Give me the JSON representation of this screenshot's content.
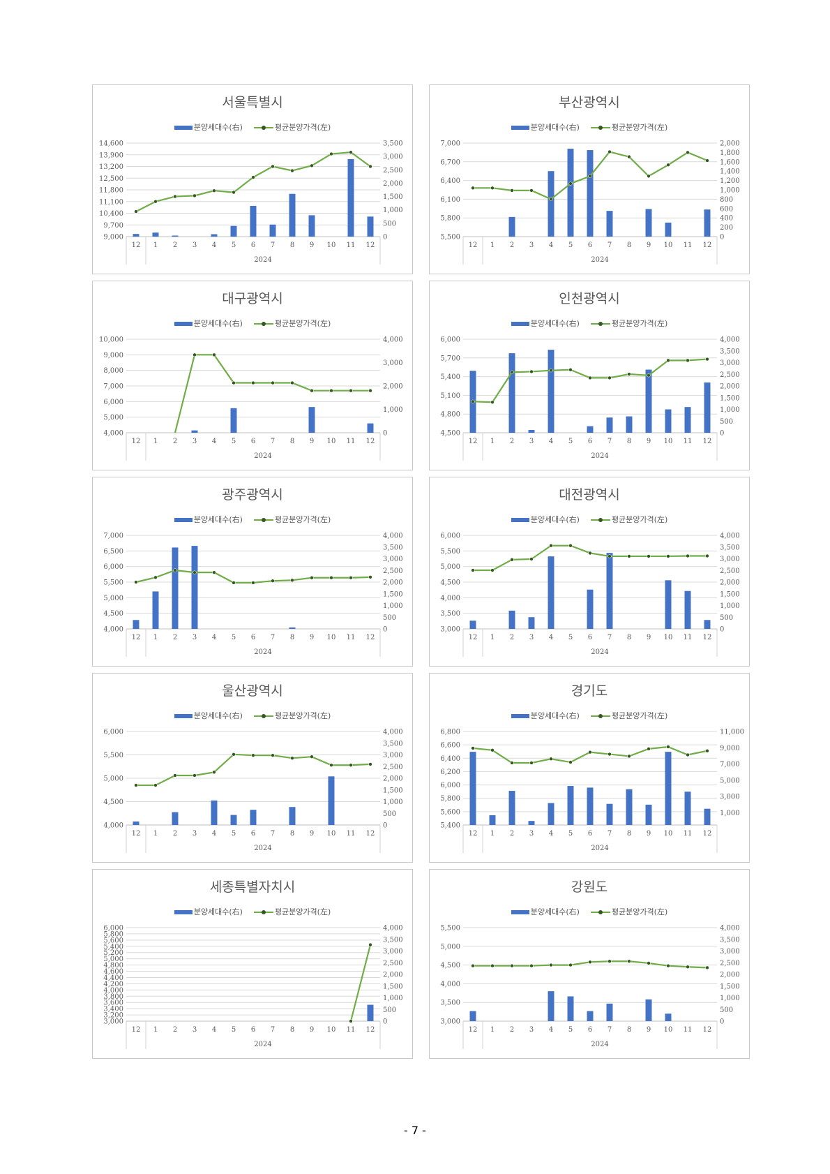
{
  "page_number": "- 7 -",
  "legend": {
    "bar_label": "분양세대수(右)",
    "line_label": "평균분양가격(左)"
  },
  "colors": {
    "bar": "#4472c4",
    "line": "#70ad47",
    "marker": "#375623",
    "grid": "#d9d9d9"
  },
  "x_categories": [
    "12",
    "1",
    "2",
    "3",
    "4",
    "5",
    "6",
    "7",
    "8",
    "9",
    "10",
    "11",
    "12"
  ],
  "x_group_label": "2024",
  "chart_data": [
    {
      "type": "bar+line",
      "title": "서울특별시",
      "left_ticks": [
        "9,000",
        "9,700",
        "10,400",
        "11,100",
        "11,800",
        "12,500",
        "13,200",
        "13,900",
        "14,600"
      ],
      "left_range": [
        9000,
        14600
      ],
      "right_ticks": [
        "0",
        "500",
        "1,000",
        "1,500",
        "2,000",
        "2,500",
        "3,000",
        "3,500"
      ],
      "right_range": [
        0,
        3500
      ],
      "bars": [
        100,
        150,
        40,
        0,
        90,
        400,
        1150,
        450,
        1600,
        800,
        0,
        2900,
        750
      ],
      "line": [
        10500,
        11100,
        11400,
        11450,
        11750,
        11650,
        12550,
        13200,
        12950,
        13250,
        13950,
        14050,
        13200
      ]
    },
    {
      "type": "bar+line",
      "title": "부산광역시",
      "left_ticks": [
        "5,500",
        "5,800",
        "6,100",
        "6,400",
        "6,700",
        "7,000"
      ],
      "left_range": [
        5500,
        7000
      ],
      "right_ticks": [
        "0",
        "200",
        "400",
        "600",
        "800",
        "1,000",
        "1,200",
        "1,400",
        "1,600",
        "1,800",
        "2,000"
      ],
      "right_range": [
        0,
        2000
      ],
      "bars": [
        0,
        0,
        420,
        0,
        1400,
        1880,
        1850,
        550,
        0,
        590,
        300,
        0,
        580
      ],
      "line": [
        6280,
        6280,
        6240,
        6240,
        6100,
        6350,
        6470,
        6860,
        6780,
        6470,
        6650,
        6850,
        6720
      ]
    },
    {
      "type": "bar+line",
      "title": "대구광역시",
      "left_ticks": [
        "4,000",
        "5,000",
        "6,000",
        "7,000",
        "8,000",
        "9,000",
        "10,000"
      ],
      "left_range": [
        4000,
        10000
      ],
      "right_ticks": [
        "0",
        "1,000",
        "2,000",
        "3,000",
        "4,000"
      ],
      "right_range": [
        0,
        4000
      ],
      "bars": [
        0,
        0,
        0,
        100,
        0,
        1050,
        0,
        0,
        0,
        1100,
        0,
        0,
        400
      ],
      "line": [
        null,
        null,
        3900,
        9000,
        9000,
        7200,
        7200,
        7200,
        7200,
        6700,
        6700,
        6700,
        6700
      ]
    },
    {
      "type": "bar+line",
      "title": "인천광역시",
      "left_ticks": [
        "4,500",
        "4,800",
        "5,100",
        "5,400",
        "5,700",
        "6,000"
      ],
      "left_range": [
        4500,
        6000
      ],
      "right_ticks": [
        "0",
        "500",
        "1,000",
        "1,500",
        "2,000",
        "2,500",
        "3,000",
        "3,500",
        "4,000"
      ],
      "right_range": [
        0,
        4000
      ],
      "bars": [
        2650,
        0,
        3400,
        120,
        3550,
        0,
        280,
        650,
        700,
        2700,
        1000,
        1100,
        2150
      ],
      "line": [
        5000,
        4990,
        5470,
        5480,
        5500,
        5510,
        5380,
        5380,
        5440,
        5420,
        5660,
        5660,
        5680
      ]
    },
    {
      "type": "bar+line",
      "title": "광주광역시",
      "left_ticks": [
        "4,000",
        "4,500",
        "5,000",
        "5,500",
        "6,000",
        "6,500",
        "7,000"
      ],
      "left_range": [
        4000,
        7000
      ],
      "right_ticks": [
        "0",
        "500",
        "1,000",
        "1,500",
        "2,000",
        "2,500",
        "3,000",
        "3,500",
        "4,000"
      ],
      "right_range": [
        0,
        4000
      ],
      "bars": [
        380,
        1600,
        3480,
        3550,
        0,
        0,
        0,
        0,
        60,
        0,
        0,
        0,
        0
      ],
      "line": [
        5500,
        5650,
        5880,
        5810,
        5810,
        5480,
        5480,
        5540,
        5560,
        5640,
        5640,
        5640,
        5660
      ]
    },
    {
      "type": "bar+line",
      "title": "대전광역시",
      "left_ticks": [
        "3,000",
        "3,500",
        "4,000",
        "4,500",
        "5,000",
        "5,500",
        "6,000"
      ],
      "left_range": [
        3000,
        6000
      ],
      "right_ticks": [
        "0",
        "500",
        "1,000",
        "1,500",
        "2,000",
        "2,500",
        "3,000",
        "3,500",
        "4,000"
      ],
      "right_range": [
        0,
        4000
      ],
      "bars": [
        350,
        0,
        780,
        500,
        3100,
        0,
        1680,
        3250,
        0,
        0,
        2080,
        1620,
        380
      ],
      "line": [
        4880,
        4880,
        5220,
        5240,
        5670,
        5670,
        5430,
        5330,
        5330,
        5330,
        5330,
        5340,
        5340
      ]
    },
    {
      "type": "bar+line",
      "title": "울산광역시",
      "left_ticks": [
        "4,000",
        "4,500",
        "5,000",
        "5,500",
        "6,000"
      ],
      "left_range": [
        4000,
        6000
      ],
      "right_ticks": [
        "0",
        "500",
        "1,000",
        "1,500",
        "2,000",
        "2,500",
        "3,000",
        "3,500",
        "4,000"
      ],
      "right_range": [
        0,
        4000
      ],
      "bars": [
        150,
        0,
        550,
        0,
        1050,
        430,
        650,
        0,
        770,
        0,
        2080,
        0,
        0
      ],
      "line": [
        4850,
        4850,
        5060,
        5060,
        5130,
        5510,
        5490,
        5490,
        5430,
        5460,
        5280,
        5280,
        5300
      ]
    },
    {
      "type": "bar+line",
      "title": "경기도",
      "left_ticks": [
        "5,400",
        "5,600",
        "5,800",
        "6,000",
        "6,200",
        "6,400",
        "6,600",
        "6,800"
      ],
      "left_range": [
        5400,
        6800
      ],
      "right_ticks": [
        "1,000",
        "3,000",
        "5,000",
        "7,000",
        "9,000",
        "11,000"
      ],
      "right_range": [
        -500,
        11000
      ],
      "bars": [
        8500,
        700,
        3700,
        0,
        2200,
        4300,
        4100,
        2100,
        3900,
        2000,
        8500,
        3600,
        1500
      ],
      "line": [
        6550,
        6520,
        6330,
        6330,
        6390,
        6340,
        6490,
        6460,
        6430,
        6540,
        6570,
        6450,
        6510
      ]
    },
    {
      "type": "bar+line",
      "title": "세종특별자치시",
      "left_ticks": [
        "3,000",
        "3,200",
        "3,400",
        "3,600",
        "3,800",
        "4,000",
        "4,200",
        "4,400",
        "4,600",
        "4,800",
        "5,000",
        "5,200",
        "5,400",
        "5,600",
        "5,800",
        "6,000"
      ],
      "left_range": [
        3000,
        6000
      ],
      "right_ticks": [
        "0",
        "500",
        "1,000",
        "1,500",
        "2,000",
        "2,500",
        "3,000",
        "3,500",
        "4,000"
      ],
      "right_range": [
        0,
        4000
      ],
      "bars": [
        0,
        0,
        0,
        0,
        0,
        0,
        0,
        0,
        0,
        0,
        0,
        0,
        700
      ],
      "line": [
        null,
        null,
        null,
        null,
        null,
        null,
        null,
        null,
        null,
        null,
        null,
        3000,
        5450
      ]
    },
    {
      "type": "bar+line",
      "title": "강원도",
      "left_ticks": [
        "3,000",
        "3,500",
        "4,000",
        "4,500",
        "5,000",
        "5,500"
      ],
      "left_range": [
        3000,
        5500
      ],
      "right_ticks": [
        "0",
        "500",
        "1,000",
        "1,500",
        "2,000",
        "2,500",
        "3,000",
        "3,500",
        "4,000"
      ],
      "right_range": [
        0,
        4000
      ],
      "bars": [
        430,
        0,
        0,
        0,
        1280,
        1060,
        430,
        750,
        0,
        930,
        320,
        0,
        0
      ],
      "line": [
        4480,
        4480,
        4480,
        4480,
        4500,
        4500,
        4580,
        4600,
        4600,
        4550,
        4480,
        4450,
        4430
      ]
    }
  ]
}
